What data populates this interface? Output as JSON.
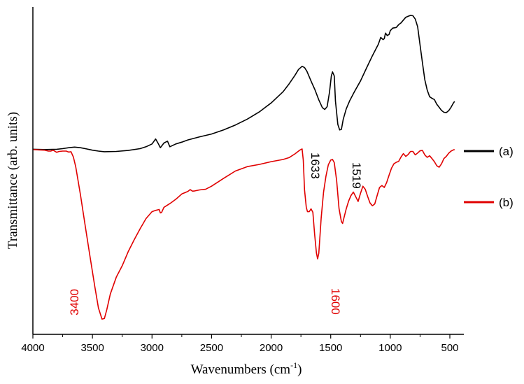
{
  "chart_data": {
    "type": "line",
    "xlabel": "Wavenumbers (cm",
    "xlabel_sup": "-1",
    "xlabel_tail": ")",
    "ylabel": "Transmittance  (arb. units)",
    "xlim": [
      4000,
      400
    ],
    "x_reversed": true,
    "ylim": [
      0,
      1
    ],
    "y_ticks_shown": false,
    "grid": false,
    "legend_placement": "right",
    "x_ticks": [
      4000,
      3500,
      3000,
      2500,
      2000,
      1500,
      1000,
      500
    ],
    "x_tick_labels": [
      "4000",
      "3500",
      "3000",
      "2500",
      "2000",
      "1500",
      "1000",
      "500"
    ],
    "series": [
      {
        "name": "(a)",
        "color": "#000000",
        "points": [
          [
            4000,
            0.413
          ],
          [
            3900,
            0.414
          ],
          [
            3800,
            0.413
          ],
          [
            3750,
            0.411
          ],
          [
            3700,
            0.408
          ],
          [
            3650,
            0.406
          ],
          [
            3600,
            0.408
          ],
          [
            3550,
            0.412
          ],
          [
            3500,
            0.416
          ],
          [
            3450,
            0.419
          ],
          [
            3400,
            0.421
          ],
          [
            3300,
            0.42
          ],
          [
            3200,
            0.417
          ],
          [
            3100,
            0.411
          ],
          [
            3050,
            0.405
          ],
          [
            3000,
            0.396
          ],
          [
            2970,
            0.38
          ],
          [
            2950,
            0.393
          ],
          [
            2930,
            0.408
          ],
          [
            2900,
            0.393
          ],
          [
            2870,
            0.387
          ],
          [
            2850,
            0.405
          ],
          [
            2800,
            0.396
          ],
          [
            2750,
            0.39
          ],
          [
            2700,
            0.383
          ],
          [
            2600,
            0.373
          ],
          [
            2500,
            0.364
          ],
          [
            2400,
            0.351
          ],
          [
            2300,
            0.335
          ],
          [
            2200,
            0.316
          ],
          [
            2100,
            0.293
          ],
          [
            2000,
            0.264
          ],
          [
            1900,
            0.228
          ],
          [
            1850,
            0.203
          ],
          [
            1800,
            0.175
          ],
          [
            1770,
            0.156
          ],
          [
            1740,
            0.146
          ],
          [
            1720,
            0.15
          ],
          [
            1700,
            0.162
          ],
          [
            1660,
            0.198
          ],
          [
            1633,
            0.221
          ],
          [
            1600,
            0.254
          ],
          [
            1570,
            0.279
          ],
          [
            1550,
            0.285
          ],
          [
            1530,
            0.276
          ],
          [
            1510,
            0.229
          ],
          [
            1495,
            0.177
          ],
          [
            1485,
            0.164
          ],
          [
            1470,
            0.177
          ],
          [
            1460,
            0.258
          ],
          [
            1440,
            0.333
          ],
          [
            1425,
            0.351
          ],
          [
            1410,
            0.349
          ],
          [
            1395,
            0.317
          ],
          [
            1370,
            0.283
          ],
          [
            1340,
            0.256
          ],
          [
            1300,
            0.227
          ],
          [
            1250,
            0.193
          ],
          [
            1200,
            0.152
          ],
          [
            1150,
            0.112
          ],
          [
            1100,
            0.075
          ],
          [
            1080,
            0.053
          ],
          [
            1060,
            0.06
          ],
          [
            1050,
            0.057
          ],
          [
            1040,
            0.039
          ],
          [
            1025,
            0.047
          ],
          [
            1010,
            0.043
          ],
          [
            1000,
            0.031
          ],
          [
            980,
            0.023
          ],
          [
            950,
            0.021
          ],
          [
            930,
            0.012
          ],
          [
            910,
            0.006
          ],
          [
            890,
            -0.003
          ],
          [
            870,
            -0.012
          ],
          [
            850,
            -0.015
          ],
          [
            830,
            -0.018
          ],
          [
            810,
            -0.017
          ],
          [
            790,
            -0.006
          ],
          [
            770,
            0.019
          ],
          [
            750,
            0.077
          ],
          [
            730,
            0.134
          ],
          [
            710,
            0.189
          ],
          [
            690,
            0.222
          ],
          [
            670,
            0.244
          ],
          [
            650,
            0.249
          ],
          [
            630,
            0.253
          ],
          [
            610,
            0.268
          ],
          [
            590,
            0.278
          ],
          [
            570,
            0.288
          ],
          [
            550,
            0.294
          ],
          [
            530,
            0.295
          ],
          [
            510,
            0.289
          ],
          [
            490,
            0.278
          ],
          [
            470,
            0.264
          ],
          [
            460,
            0.259
          ]
        ]
      },
      {
        "name": "(b)",
        "color": "#e00000",
        "points": [
          [
            4000,
            0.414
          ],
          [
            3950,
            0.415
          ],
          [
            3900,
            0.416
          ],
          [
            3870,
            0.419
          ],
          [
            3850,
            0.419
          ],
          [
            3830,
            0.416
          ],
          [
            3800,
            0.423
          ],
          [
            3780,
            0.42
          ],
          [
            3750,
            0.419
          ],
          [
            3720,
            0.419
          ],
          [
            3700,
            0.422
          ],
          [
            3680,
            0.421
          ],
          [
            3660,
            0.438
          ],
          [
            3640,
            0.47
          ],
          [
            3600,
            0.561
          ],
          [
            3560,
            0.661
          ],
          [
            3520,
            0.759
          ],
          [
            3480,
            0.855
          ],
          [
            3450,
            0.924
          ],
          [
            3420,
            0.96
          ],
          [
            3400,
            0.958
          ],
          [
            3380,
            0.93
          ],
          [
            3350,
            0.879
          ],
          [
            3300,
            0.825
          ],
          [
            3250,
            0.788
          ],
          [
            3200,
            0.743
          ],
          [
            3150,
            0.705
          ],
          [
            3100,
            0.669
          ],
          [
            3050,
            0.636
          ],
          [
            3000,
            0.614
          ],
          [
            2970,
            0.61
          ],
          [
            2940,
            0.607
          ],
          [
            2930,
            0.618
          ],
          [
            2920,
            0.617
          ],
          [
            2900,
            0.6
          ],
          [
            2850,
            0.588
          ],
          [
            2800,
            0.574
          ],
          [
            2750,
            0.557
          ],
          [
            2700,
            0.549
          ],
          [
            2680,
            0.543
          ],
          [
            2660,
            0.548
          ],
          [
            2640,
            0.547
          ],
          [
            2600,
            0.544
          ],
          [
            2550,
            0.542
          ],
          [
            2500,
            0.532
          ],
          [
            2400,
            0.507
          ],
          [
            2300,
            0.483
          ],
          [
            2200,
            0.469
          ],
          [
            2100,
            0.462
          ],
          [
            2000,
            0.453
          ],
          [
            1900,
            0.446
          ],
          [
            1850,
            0.44
          ],
          [
            1800,
            0.428
          ],
          [
            1760,
            0.416
          ],
          [
            1740,
            0.412
          ],
          [
            1730,
            0.448
          ],
          [
            1720,
            0.544
          ],
          [
            1705,
            0.6
          ],
          [
            1695,
            0.614
          ],
          [
            1680,
            0.614
          ],
          [
            1665,
            0.605
          ],
          [
            1650,
            0.616
          ],
          [
            1635,
            0.686
          ],
          [
            1620,
            0.747
          ],
          [
            1610,
            0.766
          ],
          [
            1600,
            0.748
          ],
          [
            1580,
            0.634
          ],
          [
            1560,
            0.551
          ],
          [
            1540,
            0.5
          ],
          [
            1520,
            0.463
          ],
          [
            1500,
            0.448
          ],
          [
            1485,
            0.446
          ],
          [
            1470,
            0.456
          ],
          [
            1450,
            0.514
          ],
          [
            1430,
            0.604
          ],
          [
            1410,
            0.646
          ],
          [
            1400,
            0.652
          ],
          [
            1390,
            0.636
          ],
          [
            1370,
            0.605
          ],
          [
            1350,
            0.58
          ],
          [
            1330,
            0.562
          ],
          [
            1310,
            0.551
          ],
          [
            1290,
            0.566
          ],
          [
            1270,
            0.581
          ],
          [
            1250,
            0.555
          ],
          [
            1230,
            0.532
          ],
          [
            1210,
            0.542
          ],
          [
            1190,
            0.565
          ],
          [
            1170,
            0.586
          ],
          [
            1150,
            0.595
          ],
          [
            1130,
            0.589
          ],
          [
            1110,
            0.562
          ],
          [
            1090,
            0.536
          ],
          [
            1070,
            0.53
          ],
          [
            1050,
            0.536
          ],
          [
            1030,
            0.52
          ],
          [
            1010,
            0.496
          ],
          [
            990,
            0.474
          ],
          [
            970,
            0.46
          ],
          [
            950,
            0.455
          ],
          [
            930,
            0.452
          ],
          [
            910,
            0.438
          ],
          [
            890,
            0.427
          ],
          [
            870,
            0.436
          ],
          [
            850,
            0.43
          ],
          [
            830,
            0.42
          ],
          [
            810,
            0.42
          ],
          [
            790,
            0.431
          ],
          [
            770,
            0.425
          ],
          [
            750,
            0.418
          ],
          [
            730,
            0.417
          ],
          [
            710,
            0.431
          ],
          [
            690,
            0.439
          ],
          [
            670,
            0.434
          ],
          [
            650,
            0.443
          ],
          [
            630,
            0.453
          ],
          [
            610,
            0.466
          ],
          [
            590,
            0.471
          ],
          [
            570,
            0.46
          ],
          [
            550,
            0.443
          ],
          [
            530,
            0.436
          ],
          [
            510,
            0.426
          ],
          [
            490,
            0.419
          ],
          [
            470,
            0.415
          ],
          [
            460,
            0.414
          ]
        ]
      }
    ],
    "annotations": [
      {
        "text": "1633",
        "x": 1633,
        "color": "#000000"
      },
      {
        "text": "1519",
        "x": 1519,
        "color": "#000000"
      },
      {
        "text": "3400",
        "x": 3400,
        "color": "#e00000"
      },
      {
        "text": "1600",
        "x": 1600,
        "color": "#e00000"
      }
    ]
  }
}
